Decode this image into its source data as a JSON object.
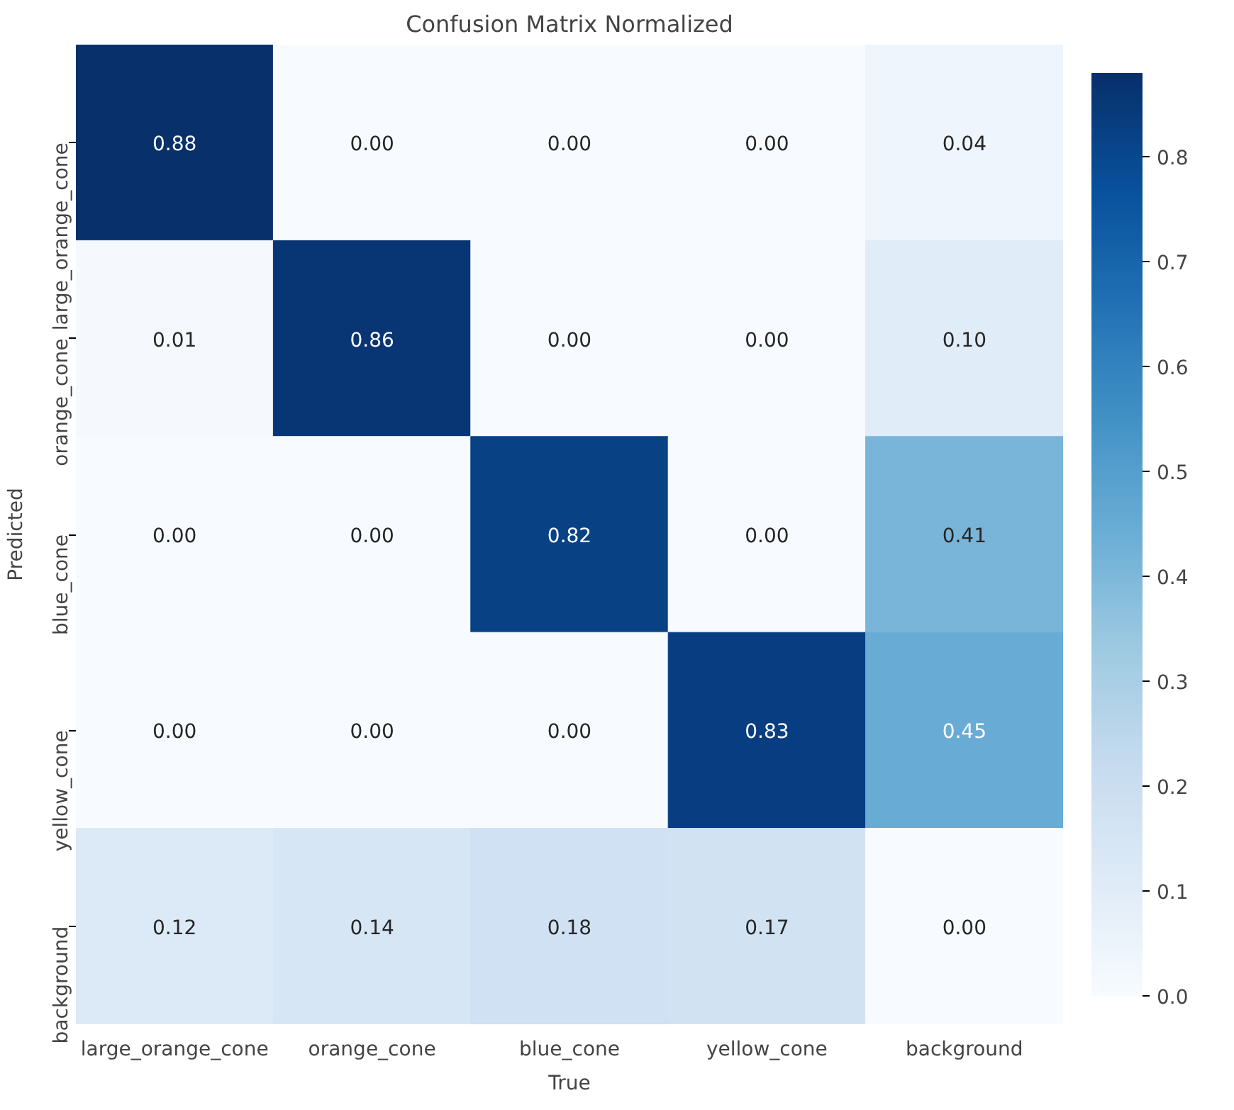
{
  "chart_data": {
    "type": "heatmap",
    "title": "Confusion Matrix Normalized",
    "xlabel": "True",
    "ylabel": "Predicted",
    "categories": [
      "large_orange_cone",
      "orange_cone",
      "blue_cone",
      "yellow_cone",
      "background"
    ],
    "y_categories": [
      "large_orange_cone",
      "orange_cone",
      "blue_cone",
      "yellow_cone",
      "background"
    ],
    "cells": [
      [
        0.88,
        0.0,
        0.0,
        0.0,
        0.04
      ],
      [
        0.01,
        0.86,
        0.0,
        0.0,
        0.1
      ],
      [
        0.0,
        0.0,
        0.82,
        0.0,
        0.41
      ],
      [
        0.0,
        0.0,
        0.0,
        0.83,
        0.45
      ],
      [
        0.12,
        0.14,
        0.18,
        0.17,
        0.0
      ]
    ],
    "cell_labels": [
      [
        "0.88",
        "0.00",
        "0.00",
        "0.00",
        "0.04"
      ],
      [
        "0.01",
        "0.86",
        "0.00",
        "0.00",
        "0.10"
      ],
      [
        "0.00",
        "0.00",
        "0.82",
        "0.00",
        "0.41"
      ],
      [
        "0.00",
        "0.00",
        "0.00",
        "0.83",
        "0.45"
      ],
      [
        "0.12",
        "0.14",
        "0.18",
        "0.17",
        "0.00"
      ]
    ],
    "clim": [
      0,
      0.88
    ],
    "cticks": [
      {
        "value": 0,
        "label": "0.0"
      },
      0.1,
      0.2,
      0.3,
      0.4,
      0.5,
      0.6,
      0.7,
      0.8
    ]
  }
}
